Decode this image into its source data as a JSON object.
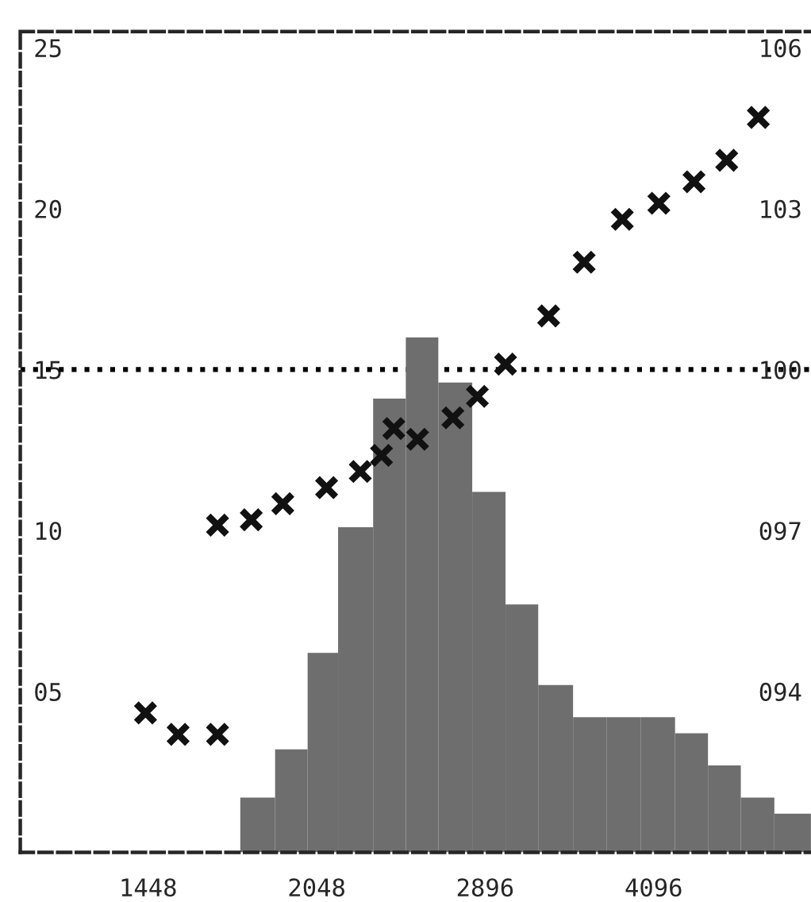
{
  "chart_data": {
    "type": "histogram",
    "log": "x",
    "xlim": [
      1113,
      5661
    ],
    "marker": "cross",
    "xticks": [
      1448,
      2048,
      2896,
      4096
    ],
    "ylim": [
      0,
      25.5
    ],
    "yticks": [
      {
        "value": 5,
        "label": "05"
      },
      {
        "value": 10,
        "label": "10"
      },
      {
        "value": 15,
        "label": "15"
      },
      {
        "value": 20,
        "label": "20"
      },
      {
        "value": 25,
        "label": "25"
      }
    ],
    "y2lim": [
      91,
      106.3
    ],
    "y2ticks": [
      {
        "value": 94,
        "label": "094"
      },
      {
        "value": 97,
        "label": "097"
      },
      {
        "value": 100,
        "label": "100"
      },
      {
        "value": 103,
        "label": "103"
      },
      {
        "value": 106,
        "label": "106"
      }
    ],
    "grid": false,
    "legend": false,
    "series": [
      {
        "color": "#6e6e6e",
        "bins": [
          1750,
          1880,
          2010,
          2140,
          2300,
          2460,
          2630,
          2820,
          3020,
          3230,
          3470,
          3720,
          3990,
          4280,
          4580,
          4900,
          5250,
          5660
        ],
        "values": [
          1.7,
          3.2,
          6.2,
          10.1,
          14.1,
          16.0,
          14.6,
          11.2,
          7.7,
          5.2,
          4.2,
          4.2,
          4.2,
          3.7,
          2.7,
          1.7,
          1.2
        ]
      },
      {
        "type": "scatter",
        "axis": "y2",
        "color": "#111111",
        "x": [
          1440,
          1540,
          1670,
          1670,
          1790,
          1910,
          2090,
          2240,
          2340,
          2400,
          2520,
          2710,
          2850,
          3020,
          3300,
          3550,
          3840,
          4140,
          4450,
          4760,
          5080
        ],
        "values": [
          93.6,
          93.2,
          93.2,
          97.1,
          97.2,
          97.5,
          97.8,
          98.1,
          98.4,
          98.9,
          98.7,
          99.1,
          99.5,
          100.1,
          101.0,
          102.0,
          102.8,
          103.1,
          103.5,
          103.9,
          104.7
        ]
      }
    ],
    "ref_lines": [
      {
        "axis": "y",
        "value": 15,
        "color": "#000000",
        "line_style": "dotted"
      }
    ]
  }
}
